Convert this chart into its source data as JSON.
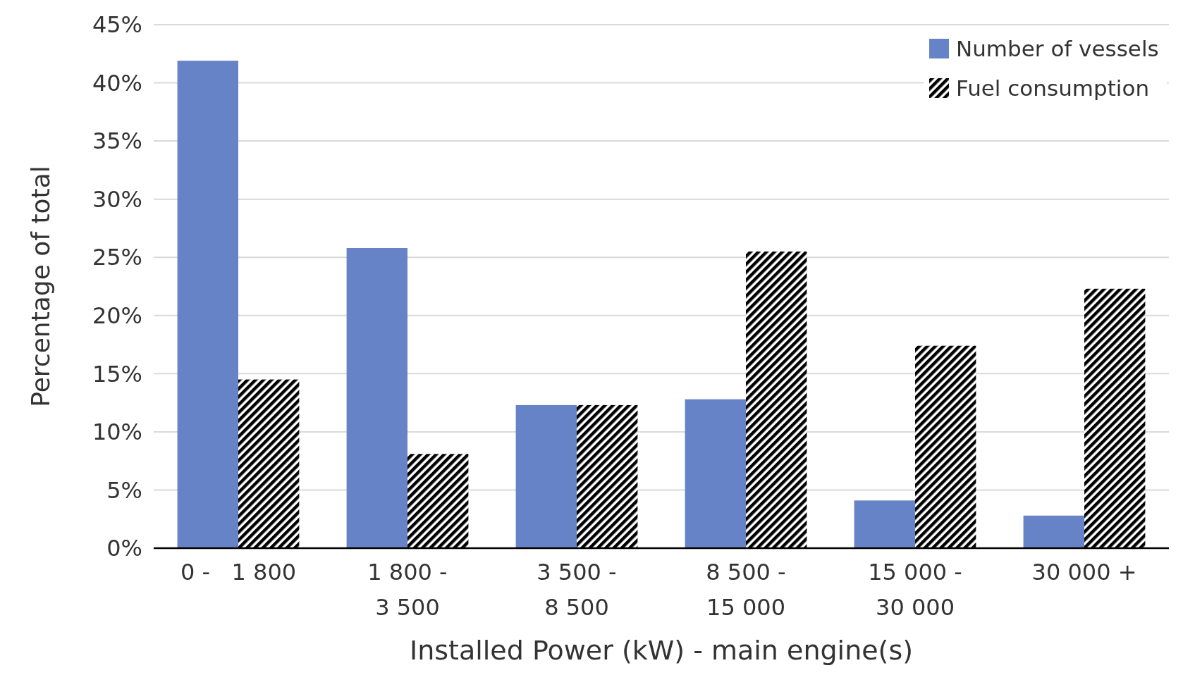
{
  "chart_data": {
    "type": "bar",
    "xlabel": "Installed Power (kW) - main engine(s)",
    "ylabel": "Percentage of total",
    "categories": [
      "0 -   1 800",
      "1 800 -\n3 500",
      "3 500 -\n8 500",
      "8 500 -\n15 000",
      "15 000 -\n30 000",
      "30 000 +"
    ],
    "series": [
      {
        "name": "Number of vessels",
        "color": "#6783c8",
        "values": [
          41.9,
          25.8,
          12.3,
          12.8,
          4.1,
          2.8
        ]
      },
      {
        "name": "Fuel consumption",
        "color": "#000000",
        "values": [
          14.5,
          8.1,
          12.3,
          25.5,
          17.4,
          22.3
        ]
      }
    ],
    "ylim": [
      0,
      45
    ],
    "yticks": [
      {
        "value": 0,
        "label": "0%"
      },
      {
        "value": 5,
        "label": "5%"
      },
      {
        "value": 10,
        "label": "10%"
      },
      {
        "value": 15,
        "label": "15%"
      },
      {
        "value": 20,
        "label": "20%"
      },
      {
        "value": 25,
        "label": "25%"
      },
      {
        "value": 30,
        "label": "30%"
      },
      {
        "value": 35,
        "label": "35%"
      },
      {
        "value": 40,
        "label": "40%"
      },
      {
        "value": 45,
        "label": "45%"
      }
    ],
    "grid": "y",
    "legend": "top right"
  }
}
